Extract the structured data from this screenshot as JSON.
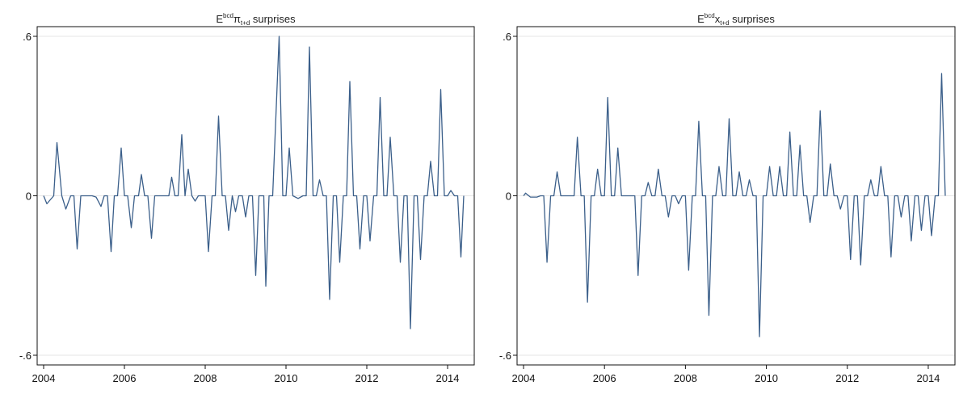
{
  "chart_data": [
    {
      "type": "line",
      "title": {
        "prefix": "E",
        "sup": "bcd",
        "symbol": "π",
        "sub": "t+d",
        "suffix": " surprises"
      },
      "color": "#3b5f8a",
      "xlim": [
        2004,
        2014.5
      ],
      "ylim": [
        -0.6,
        0.6
      ],
      "xticks": [
        2004,
        2006,
        2008,
        2010,
        2012,
        2014
      ],
      "yticks": [
        -0.6,
        0,
        0.6
      ],
      "ytick_labels": [
        "-.6",
        "0",
        ".6"
      ],
      "grid": true,
      "series": [
        {
          "points": [
            [
              2004.0,
              0
            ],
            [
              2004.08,
              -0.03
            ],
            [
              2004.25,
              0
            ],
            [
              2004.33,
              0.2
            ],
            [
              2004.45,
              0
            ],
            [
              2004.55,
              -0.05
            ],
            [
              2004.67,
              0
            ],
            [
              2004.75,
              0
            ],
            [
              2004.83,
              -0.2
            ],
            [
              2004.92,
              0
            ],
            [
              2005.1,
              0
            ],
            [
              2005.2,
              0
            ],
            [
              2005.3,
              -0.005
            ],
            [
              2005.42,
              -0.04
            ],
            [
              2005.5,
              0
            ],
            [
              2005.58,
              0
            ],
            [
              2005.67,
              -0.21
            ],
            [
              2005.75,
              0
            ],
            [
              2005.83,
              0
            ],
            [
              2005.92,
              0.18
            ],
            [
              2006.0,
              0
            ],
            [
              2006.08,
              0
            ],
            [
              2006.17,
              -0.12
            ],
            [
              2006.25,
              0
            ],
            [
              2006.35,
              0
            ],
            [
              2006.42,
              0.08
            ],
            [
              2006.5,
              0
            ],
            [
              2006.58,
              0
            ],
            [
              2006.67,
              -0.16
            ],
            [
              2006.75,
              0
            ],
            [
              2007.0,
              0
            ],
            [
              2007.1,
              0
            ],
            [
              2007.17,
              0.07
            ],
            [
              2007.25,
              0
            ],
            [
              2007.33,
              0
            ],
            [
              2007.42,
              0.23
            ],
            [
              2007.5,
              0
            ],
            [
              2007.58,
              0.1
            ],
            [
              2007.67,
              0
            ],
            [
              2007.75,
              -0.02
            ],
            [
              2007.83,
              0
            ],
            [
              2008.0,
              0
            ],
            [
              2008.08,
              -0.21
            ],
            [
              2008.17,
              0
            ],
            [
              2008.25,
              0
            ],
            [
              2008.33,
              0.3
            ],
            [
              2008.42,
              0
            ],
            [
              2008.5,
              0
            ],
            [
              2008.58,
              -0.13
            ],
            [
              2008.67,
              0
            ],
            [
              2008.75,
              -0.06
            ],
            [
              2008.83,
              0
            ],
            [
              2008.92,
              0
            ],
            [
              2009.0,
              -0.08
            ],
            [
              2009.08,
              0
            ],
            [
              2009.17,
              0
            ],
            [
              2009.25,
              -0.3
            ],
            [
              2009.33,
              0
            ],
            [
              2009.45,
              0
            ],
            [
              2009.5,
              -0.34
            ],
            [
              2009.58,
              0
            ],
            [
              2009.67,
              0
            ],
            [
              2009.83,
              0.6
            ],
            [
              2009.92,
              0
            ],
            [
              2010.0,
              0
            ],
            [
              2010.08,
              0.18
            ],
            [
              2010.17,
              0
            ],
            [
              2010.3,
              -0.01
            ],
            [
              2010.42,
              0
            ],
            [
              2010.5,
              0
            ],
            [
              2010.58,
              0.56
            ],
            [
              2010.67,
              0
            ],
            [
              2010.75,
              0
            ],
            [
              2010.83,
              0.06
            ],
            [
              2010.92,
              0
            ],
            [
              2011.0,
              0
            ],
            [
              2011.08,
              -0.39
            ],
            [
              2011.17,
              0
            ],
            [
              2011.25,
              0
            ],
            [
              2011.33,
              -0.25
            ],
            [
              2011.42,
              0
            ],
            [
              2011.5,
              0
            ],
            [
              2011.58,
              0.43
            ],
            [
              2011.67,
              0
            ],
            [
              2011.75,
              0
            ],
            [
              2011.83,
              -0.2
            ],
            [
              2011.92,
              0
            ],
            [
              2012.0,
              0
            ],
            [
              2012.08,
              -0.17
            ],
            [
              2012.17,
              0
            ],
            [
              2012.25,
              0
            ],
            [
              2012.33,
              0.37
            ],
            [
              2012.42,
              0
            ],
            [
              2012.5,
              0
            ],
            [
              2012.58,
              0.22
            ],
            [
              2012.67,
              0
            ],
            [
              2012.75,
              0
            ],
            [
              2012.83,
              -0.25
            ],
            [
              2012.92,
              0
            ],
            [
              2013.0,
              0
            ],
            [
              2013.08,
              -0.5
            ],
            [
              2013.17,
              0
            ],
            [
              2013.25,
              0
            ],
            [
              2013.33,
              -0.24
            ],
            [
              2013.42,
              0
            ],
            [
              2013.5,
              0
            ],
            [
              2013.58,
              0.13
            ],
            [
              2013.67,
              0
            ],
            [
              2013.75,
              0
            ],
            [
              2013.83,
              0.4
            ],
            [
              2013.92,
              0
            ],
            [
              2014.0,
              0
            ],
            [
              2014.08,
              0.02
            ],
            [
              2014.17,
              0
            ],
            [
              2014.25,
              0
            ],
            [
              2014.33,
              -0.23
            ],
            [
              2014.4,
              0
            ]
          ]
        }
      ]
    },
    {
      "type": "line",
      "title": {
        "prefix": "E",
        "sup": "bcd",
        "symbol": "x",
        "sub": "t+d",
        "suffix": " surprises"
      },
      "color": "#3b5f8a",
      "xlim": [
        2004,
        2014.5
      ],
      "ylim": [
        -0.6,
        0.6
      ],
      "xticks": [
        2004,
        2006,
        2008,
        2010,
        2012,
        2014
      ],
      "yticks": [
        -0.6,
        0,
        0.6
      ],
      "ytick_labels": [
        "-.6",
        "0",
        ".6"
      ],
      "grid": true,
      "series": [
        {
          "points": [
            [
              2004.0,
              0
            ],
            [
              2004.05,
              0.01
            ],
            [
              2004.17,
              -0.005
            ],
            [
              2004.33,
              -0.005
            ],
            [
              2004.42,
              0
            ],
            [
              2004.5,
              0
            ],
            [
              2004.58,
              -0.25
            ],
            [
              2004.67,
              0
            ],
            [
              2004.75,
              0
            ],
            [
              2004.83,
              0.09
            ],
            [
              2004.92,
              0
            ],
            [
              2005.0,
              0
            ],
            [
              2005.17,
              0
            ],
            [
              2005.25,
              0
            ],
            [
              2005.33,
              0.22
            ],
            [
              2005.42,
              0
            ],
            [
              2005.5,
              0
            ],
            [
              2005.58,
              -0.4
            ],
            [
              2005.67,
              0
            ],
            [
              2005.75,
              0
            ],
            [
              2005.83,
              0.1
            ],
            [
              2005.92,
              0
            ],
            [
              2006.0,
              0
            ],
            [
              2006.08,
              0.37
            ],
            [
              2006.17,
              0
            ],
            [
              2006.25,
              0
            ],
            [
              2006.33,
              0.18
            ],
            [
              2006.42,
              0
            ],
            [
              2006.67,
              0
            ],
            [
              2006.75,
              0
            ],
            [
              2006.83,
              -0.3
            ],
            [
              2006.92,
              0
            ],
            [
              2007.0,
              0
            ],
            [
              2007.08,
              0.05
            ],
            [
              2007.17,
              0
            ],
            [
              2007.25,
              0
            ],
            [
              2007.33,
              0.1
            ],
            [
              2007.42,
              0
            ],
            [
              2007.5,
              0
            ],
            [
              2007.58,
              -0.08
            ],
            [
              2007.67,
              0
            ],
            [
              2007.75,
              0
            ],
            [
              2007.83,
              -0.03
            ],
            [
              2007.92,
              0
            ],
            [
              2008.0,
              0
            ],
            [
              2008.08,
              -0.28
            ],
            [
              2008.17,
              0
            ],
            [
              2008.25,
              0
            ],
            [
              2008.33,
              0.28
            ],
            [
              2008.42,
              0
            ],
            [
              2008.5,
              0
            ],
            [
              2008.58,
              -0.45
            ],
            [
              2008.67,
              0
            ],
            [
              2008.75,
              0
            ],
            [
              2008.83,
              0.11
            ],
            [
              2008.92,
              0
            ],
            [
              2009.0,
              0
            ],
            [
              2009.08,
              0.29
            ],
            [
              2009.17,
              0
            ],
            [
              2009.25,
              0
            ],
            [
              2009.33,
              0.09
            ],
            [
              2009.42,
              0
            ],
            [
              2009.5,
              0
            ],
            [
              2009.58,
              0.06
            ],
            [
              2009.67,
              0
            ],
            [
              2009.75,
              0
            ],
            [
              2009.83,
              -0.53
            ],
            [
              2009.92,
              0
            ],
            [
              2010.0,
              0
            ],
            [
              2010.08,
              0.11
            ],
            [
              2010.17,
              0
            ],
            [
              2010.25,
              0
            ],
            [
              2010.33,
              0.11
            ],
            [
              2010.42,
              0
            ],
            [
              2010.5,
              0
            ],
            [
              2010.58,
              0.24
            ],
            [
              2010.67,
              0
            ],
            [
              2010.75,
              0
            ],
            [
              2010.83,
              0.19
            ],
            [
              2010.92,
              0
            ],
            [
              2011.0,
              0
            ],
            [
              2011.08,
              -0.1
            ],
            [
              2011.17,
              0
            ],
            [
              2011.25,
              0
            ],
            [
              2011.33,
              0.32
            ],
            [
              2011.42,
              0
            ],
            [
              2011.5,
              0
            ],
            [
              2011.58,
              0.12
            ],
            [
              2011.67,
              0
            ],
            [
              2011.75,
              0
            ],
            [
              2011.83,
              -0.05
            ],
            [
              2011.92,
              0
            ],
            [
              2012.0,
              0
            ],
            [
              2012.08,
              -0.24
            ],
            [
              2012.17,
              0
            ],
            [
              2012.25,
              0
            ],
            [
              2012.33,
              -0.26
            ],
            [
              2012.42,
              0
            ],
            [
              2012.5,
              0
            ],
            [
              2012.58,
              0.06
            ],
            [
              2012.67,
              0
            ],
            [
              2012.75,
              0
            ],
            [
              2012.83,
              0.11
            ],
            [
              2012.92,
              0
            ],
            [
              2013.0,
              0
            ],
            [
              2013.08,
              -0.23
            ],
            [
              2013.17,
              0
            ],
            [
              2013.25,
              0
            ],
            [
              2013.33,
              -0.08
            ],
            [
              2013.42,
              0
            ],
            [
              2013.5,
              0
            ],
            [
              2013.58,
              -0.17
            ],
            [
              2013.67,
              0
            ],
            [
              2013.75,
              0
            ],
            [
              2013.83,
              -0.13
            ],
            [
              2013.92,
              0
            ],
            [
              2014.0,
              0
            ],
            [
              2014.08,
              -0.15
            ],
            [
              2014.17,
              0
            ],
            [
              2014.25,
              0
            ],
            [
              2014.33,
              0.46
            ],
            [
              2014.42,
              0
            ]
          ]
        }
      ]
    }
  ]
}
